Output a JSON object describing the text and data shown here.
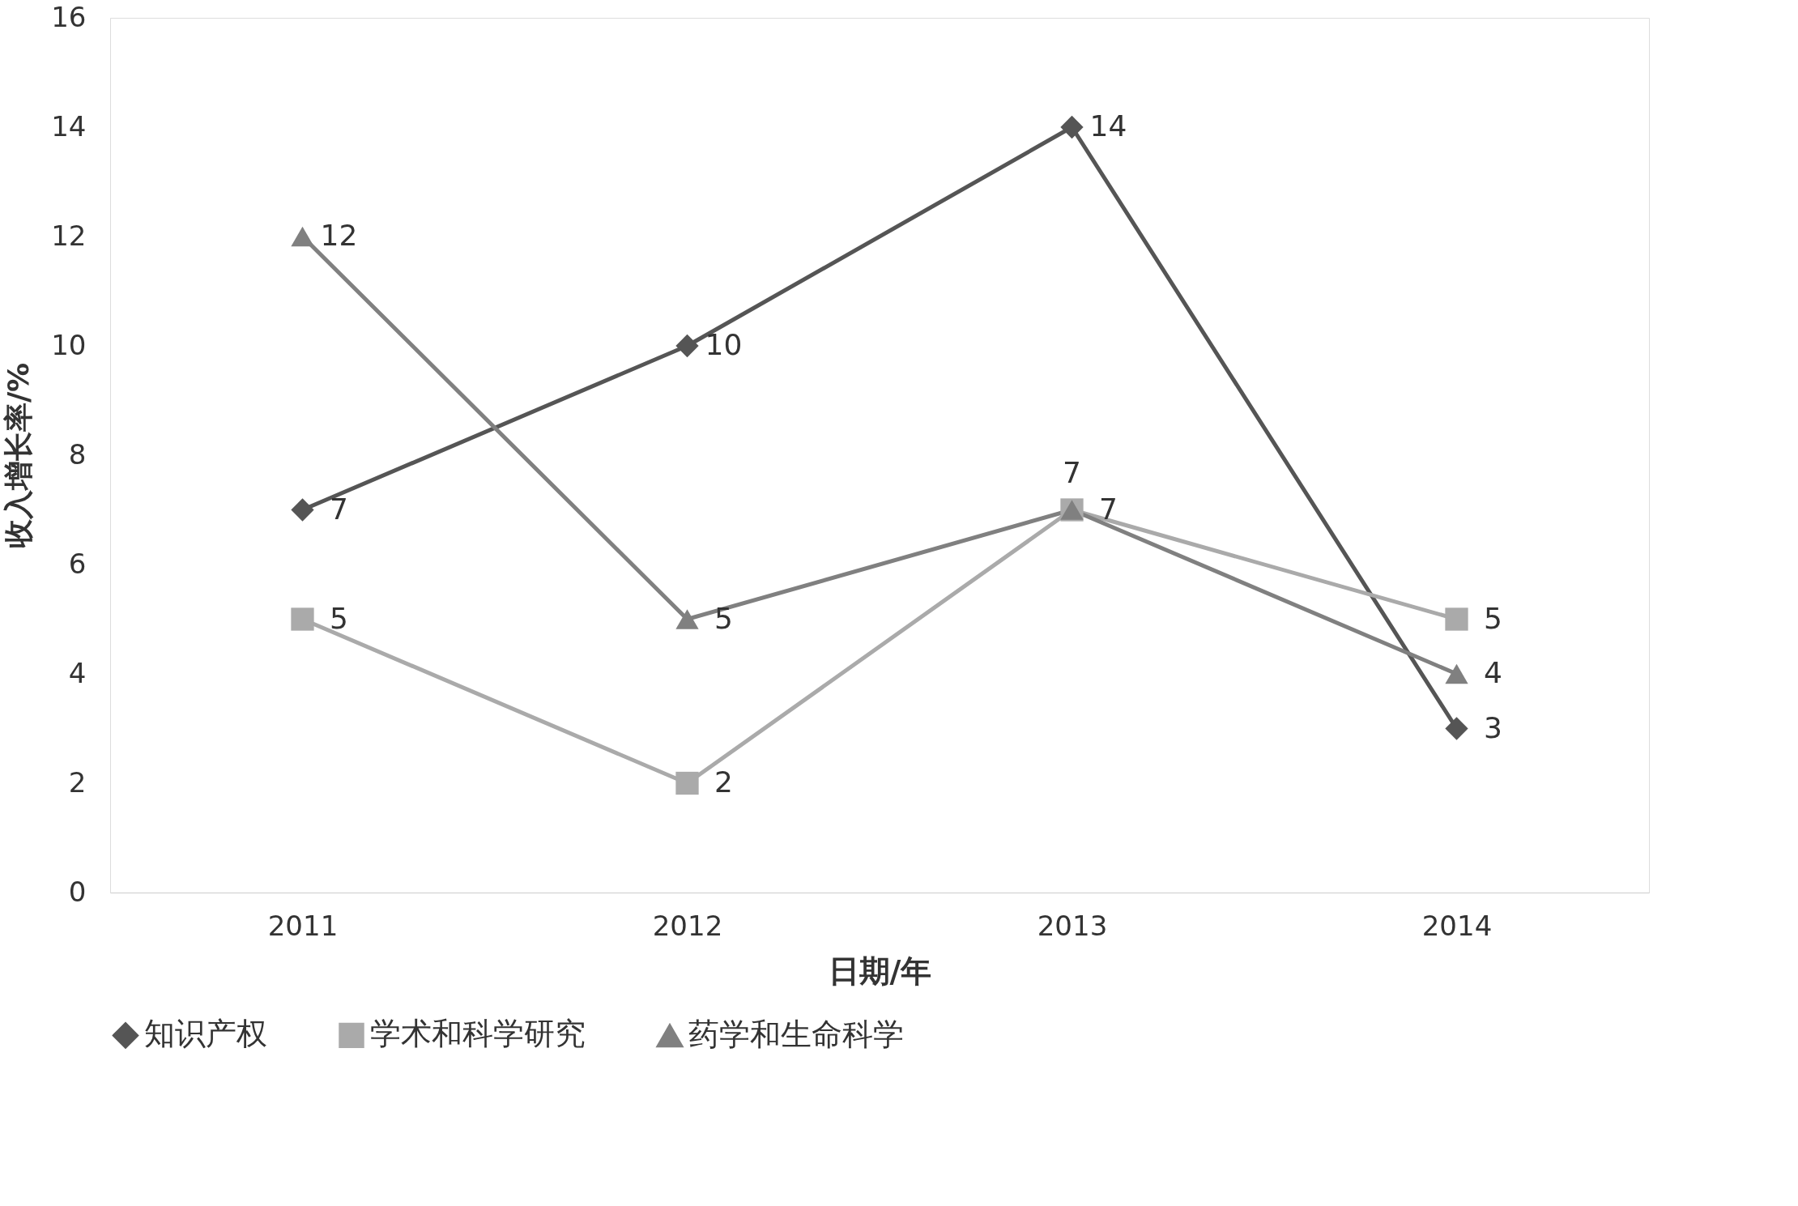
{
  "chart_data": {
    "type": "line",
    "xlabel": "日期/年",
    "ylabel": "收入增长率/%",
    "categories": [
      "2011",
      "2012",
      "2013",
      "2014"
    ],
    "series": [
      {
        "name": "知识产权",
        "color": "#555555",
        "marker": "diamond",
        "values": [
          7,
          10,
          14,
          3
        ]
      },
      {
        "name": "学术和科学研究",
        "color": "#aaaaaa",
        "marker": "square",
        "values": [
          5,
          2,
          7,
          5
        ]
      },
      {
        "name": "药学和生命科学",
        "color": "#808080",
        "marker": "triangle",
        "values": [
          12,
          5,
          7,
          4
        ]
      }
    ],
    "ylim": [
      0,
      16
    ],
    "yticks": [
      0,
      2,
      4,
      6,
      8,
      10,
      12,
      14,
      16
    ],
    "grid": false,
    "legend": "bottom",
    "data_labels": true,
    "line_style": "solid"
  }
}
